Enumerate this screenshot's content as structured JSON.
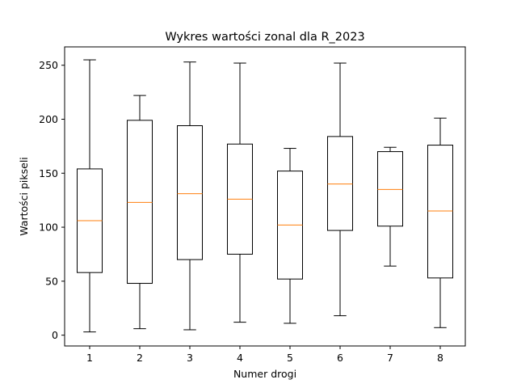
{
  "chart_data": {
    "type": "boxplot",
    "title": "Wykres wartości zonal dla R_2023",
    "xlabel": "Numer drogi",
    "ylabel": "Wartości pikseli",
    "categories": [
      "1",
      "2",
      "3",
      "4",
      "5",
      "6",
      "7",
      "8"
    ],
    "ylim": [
      -10,
      267
    ],
    "yticks": [
      0,
      50,
      100,
      150,
      200,
      250
    ],
    "boxes": [
      {
        "category": "1",
        "whisker_low": 3,
        "q1": 58,
        "median": 106,
        "q3": 154,
        "whisker_high": 255
      },
      {
        "category": "2",
        "whisker_low": 6,
        "q1": 48,
        "median": 123,
        "q3": 199,
        "whisker_high": 222
      },
      {
        "category": "3",
        "whisker_low": 5,
        "q1": 70,
        "median": 131,
        "q3": 194,
        "whisker_high": 253
      },
      {
        "category": "4",
        "whisker_low": 12,
        "q1": 75,
        "median": 126,
        "q3": 177,
        "whisker_high": 252
      },
      {
        "category": "5",
        "whisker_low": 11,
        "q1": 52,
        "median": 102,
        "q3": 152,
        "whisker_high": 173
      },
      {
        "category": "6",
        "whisker_low": 18,
        "q1": 97,
        "median": 140,
        "q3": 184,
        "whisker_high": 252
      },
      {
        "category": "7",
        "whisker_low": 64,
        "q1": 101,
        "median": 135,
        "q3": 170,
        "whisker_high": 174
      },
      {
        "category": "8",
        "whisker_low": 7,
        "q1": 53,
        "median": 115,
        "q3": 176,
        "whisker_high": 201
      }
    ],
    "colors": {
      "box": "#000000",
      "median": "#ff7f0e"
    },
    "grid": false,
    "legend": "none"
  }
}
